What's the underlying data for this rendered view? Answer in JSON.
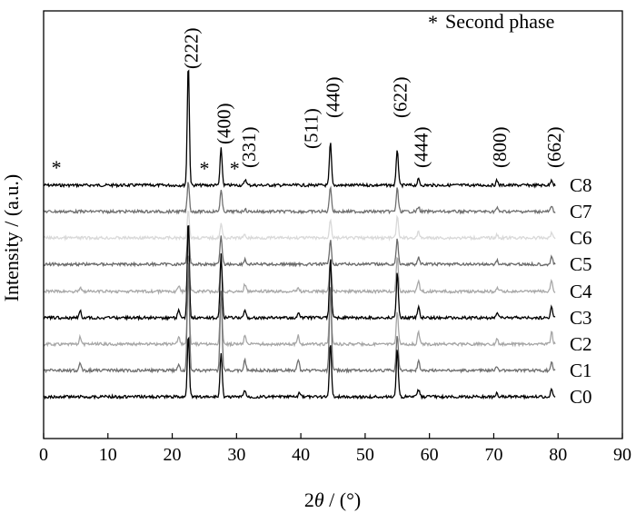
{
  "chart_data": {
    "type": "line",
    "xlabel_prefix": "2",
    "xlabel_var": "θ",
    "xlabel_suffix": " / (°)",
    "ylabel": "Intensity / (a.u.)",
    "xlim": [
      0,
      90
    ],
    "xticks": [
      "0",
      "10",
      "20",
      "30",
      "40",
      "50",
      "60",
      "70",
      "80",
      "90"
    ],
    "yticks_shown": false,
    "legend": {
      "marker": "*",
      "label": "Second phase",
      "position": "top-right"
    },
    "peak_labels": [
      {
        "label": "(222)",
        "x": 22.5
      },
      {
        "label": "(400)",
        "x": 27.6
      },
      {
        "label": "(331)",
        "x": 31.5
      },
      {
        "label": "(511)",
        "x": 41.2
      },
      {
        "label": "(440)",
        "x": 44.6
      },
      {
        "label": "(622)",
        "x": 55.0
      },
      {
        "label": "(444)",
        "x": 58.3
      },
      {
        "label": "(800)",
        "x": 70.5
      },
      {
        "label": "(662)",
        "x": 79.0
      }
    ],
    "second_phase_markers": [
      {
        "x": 2.0
      },
      {
        "x": 25.0
      },
      {
        "x": 29.7
      }
    ],
    "series": [
      {
        "name": "C8",
        "color": "#000000"
      },
      {
        "name": "C7",
        "color": "#707070"
      },
      {
        "name": "C6",
        "color": "#d9d9d9"
      },
      {
        "name": "C5",
        "color": "#6b6b6b"
      },
      {
        "name": "C4",
        "color": "#a8a8a8"
      },
      {
        "name": "C3",
        "color": "#000000"
      },
      {
        "name": "C2",
        "color": "#a6a6a6"
      },
      {
        "name": "C1",
        "color": "#707070"
      },
      {
        "name": "C0",
        "color": "#000000"
      }
    ],
    "peaks": {
      "C8": [
        [
          22.5,
          5.2
        ],
        [
          27.6,
          1.55
        ],
        [
          31.4,
          0.25
        ],
        [
          44.6,
          1.8
        ],
        [
          55.0,
          1.55
        ],
        [
          58.3,
          0.25
        ],
        [
          70.5,
          0.2
        ],
        [
          79.0,
          0.25
        ]
      ],
      "C7": [
        [
          22.5,
          1.3
        ],
        [
          27.6,
          0.9
        ],
        [
          31.3,
          0.1
        ],
        [
          44.6,
          1.1
        ],
        [
          55.0,
          1.0
        ],
        [
          58.3,
          0.2
        ],
        [
          70.5,
          0.15
        ],
        [
          79.0,
          0.2
        ]
      ],
      "C6": [
        [
          22.5,
          1.2
        ],
        [
          27.6,
          0.6
        ],
        [
          31.3,
          0.12
        ],
        [
          44.6,
          0.8
        ],
        [
          55.0,
          0.9
        ],
        [
          58.3,
          0.25
        ],
        [
          70.5,
          0.12
        ],
        [
          79.0,
          0.2
        ]
      ],
      "C5": [
        [
          22.5,
          1.7
        ],
        [
          27.6,
          1.2
        ],
        [
          31.3,
          0.2
        ],
        [
          44.6,
          1.0
        ],
        [
          55.0,
          1.1
        ],
        [
          58.3,
          0.3
        ],
        [
          70.5,
          0.15
        ],
        [
          79.0,
          0.3
        ]
      ],
      "C4": [
        [
          5.7,
          0.2
        ],
        [
          21.0,
          0.25
        ],
        [
          22.5,
          1.6
        ],
        [
          27.6,
          1.3
        ],
        [
          31.3,
          0.3
        ],
        [
          39.6,
          0.2
        ],
        [
          44.6,
          1.4
        ],
        [
          55.0,
          1.5
        ],
        [
          58.3,
          0.45
        ],
        [
          70.5,
          0.15
        ],
        [
          79.0,
          0.45
        ]
      ],
      "C3": [
        [
          5.7,
          0.3
        ],
        [
          21.0,
          0.35
        ],
        [
          22.5,
          4.2
        ],
        [
          27.6,
          2.7
        ],
        [
          31.3,
          0.35
        ],
        [
          39.6,
          0.2
        ],
        [
          44.6,
          2.5
        ],
        [
          55.0,
          1.9
        ],
        [
          58.3,
          0.5
        ],
        [
          70.5,
          0.2
        ],
        [
          79.0,
          0.45
        ]
      ],
      "C2": [
        [
          5.7,
          0.3
        ],
        [
          21.0,
          0.35
        ],
        [
          22.5,
          2.9
        ],
        [
          27.6,
          2.2
        ],
        [
          31.3,
          0.35
        ],
        [
          39.6,
          0.35
        ],
        [
          44.6,
          2.3
        ],
        [
          55.0,
          1.4
        ],
        [
          58.3,
          0.5
        ],
        [
          70.5,
          0.25
        ],
        [
          79.0,
          0.5
        ]
      ],
      "C1": [
        [
          5.7,
          0.35
        ],
        [
          21.0,
          0.3
        ],
        [
          22.5,
          4.8
        ],
        [
          27.6,
          3.4
        ],
        [
          31.3,
          0.45
        ],
        [
          39.6,
          0.5
        ],
        [
          44.6,
          3.6
        ],
        [
          55.0,
          1.5
        ],
        [
          58.3,
          0.4
        ],
        [
          70.5,
          0.2
        ],
        [
          79.0,
          0.4
        ]
      ],
      "C0": [
        [
          22.5,
          2.6
        ],
        [
          27.6,
          1.9
        ],
        [
          31.3,
          0.3
        ],
        [
          39.8,
          0.15
        ],
        [
          44.6,
          2.3
        ],
        [
          55.0,
          2.0
        ],
        [
          58.3,
          0.3
        ],
        [
          70.5,
          0.15
        ],
        [
          79.0,
          0.3
        ]
      ]
    }
  }
}
